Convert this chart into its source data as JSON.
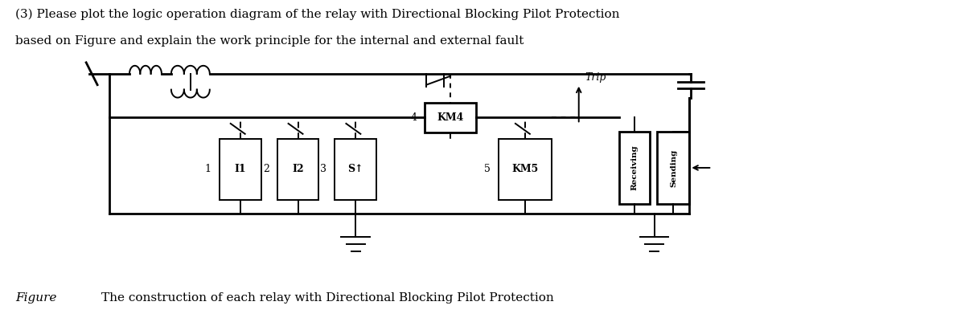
{
  "title_line1": "(3) Please plot the logic operation diagram of the relay with Directional Blocking Pilot Protection",
  "title_line2": "based on Figure and explain the work principle for the internal and external fault",
  "caption_label": "Figure",
  "caption_text": "The construction of each relay with Directional Blocking Pilot Protection",
  "background_color": "#ffffff",
  "text_color": "#000000",
  "box_labels": [
    "I1",
    "I2",
    "S↑",
    "KM4",
    "KM5"
  ],
  "box_numbers": [
    "1",
    "2",
    "3",
    "4",
    "5"
  ],
  "trip_label": "Trip",
  "receiving_label": "Receiving",
  "sending_label": "Sending",
  "fig_width": 12.0,
  "fig_height": 4.01,
  "dpi": 100
}
